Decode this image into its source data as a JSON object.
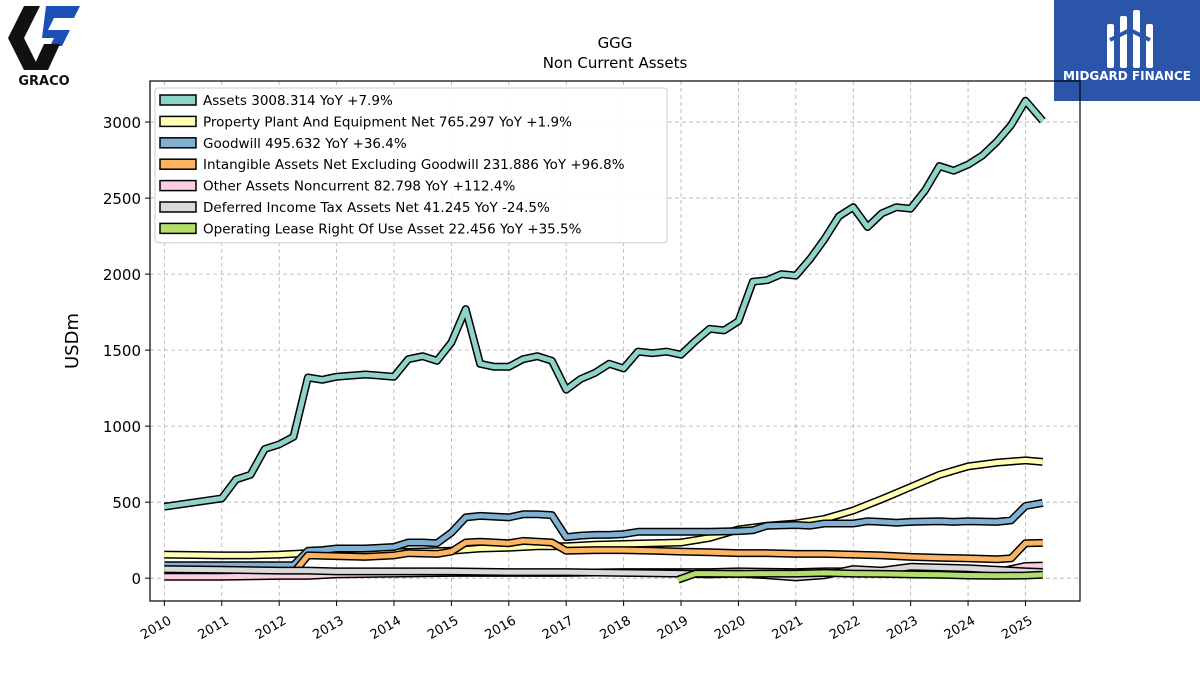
{
  "logos": {
    "left_text": "GRACO",
    "right_text": "MIDGARD FINANCE"
  },
  "chart_data": {
    "type": "line",
    "title": "GGG",
    "subtitle": "Non Current  Assets",
    "ylabel": "USDm",
    "xlabel": "",
    "xlim": [
      2009.75,
      2025.95
    ],
    "ylim": [
      -150,
      3270
    ],
    "yticks": [
      0,
      500,
      1000,
      1500,
      2000,
      2500,
      3000
    ],
    "xticks": [
      "2010",
      "2011",
      "2012",
      "2013",
      "2014",
      "2015",
      "2016",
      "2017",
      "2018",
      "2019",
      "2020",
      "2021",
      "2022",
      "2023",
      "2024",
      "2025"
    ],
    "grid": true,
    "legend_position": "top-left",
    "series": [
      {
        "name": "Assets",
        "legend": "Assets  3008.314 YoY +7.9%",
        "color": "#8dd3c7",
        "points": [
          [
            2010,
            470
          ],
          [
            2011,
            525
          ],
          [
            2011.25,
            650
          ],
          [
            2011.5,
            680
          ],
          [
            2011.75,
            850
          ],
          [
            2012,
            880
          ],
          [
            2012.25,
            930
          ],
          [
            2012.5,
            1320
          ],
          [
            2012.75,
            1305
          ],
          [
            2013,
            1325
          ],
          [
            2013.5,
            1340
          ],
          [
            2014,
            1325
          ],
          [
            2014.25,
            1440
          ],
          [
            2014.5,
            1460
          ],
          [
            2014.75,
            1430
          ],
          [
            2015,
            1550
          ],
          [
            2015.25,
            1770
          ],
          [
            2015.5,
            1410
          ],
          [
            2015.75,
            1390
          ],
          [
            2016,
            1390
          ],
          [
            2016.25,
            1440
          ],
          [
            2016.5,
            1460
          ],
          [
            2016.75,
            1430
          ],
          [
            2017,
            1240
          ],
          [
            2017.25,
            1310
          ],
          [
            2017.5,
            1350
          ],
          [
            2017.75,
            1410
          ],
          [
            2018,
            1380
          ],
          [
            2018.25,
            1490
          ],
          [
            2018.5,
            1480
          ],
          [
            2018.75,
            1490
          ],
          [
            2019,
            1470
          ],
          [
            2019.25,
            1560
          ],
          [
            2019.5,
            1640
          ],
          [
            2019.75,
            1630
          ],
          [
            2020,
            1690
          ],
          [
            2020.25,
            1950
          ],
          [
            2020.5,
            1960
          ],
          [
            2020.75,
            2000
          ],
          [
            2021,
            1990
          ],
          [
            2021.25,
            2100
          ],
          [
            2021.5,
            2230
          ],
          [
            2021.75,
            2380
          ],
          [
            2022,
            2440
          ],
          [
            2022.25,
            2310
          ],
          [
            2022.5,
            2400
          ],
          [
            2022.75,
            2440
          ],
          [
            2023,
            2430
          ],
          [
            2023.25,
            2550
          ],
          [
            2023.5,
            2710
          ],
          [
            2023.75,
            2680
          ],
          [
            2024,
            2720
          ],
          [
            2024.25,
            2780
          ],
          [
            2024.5,
            2870
          ],
          [
            2024.75,
            2980
          ],
          [
            2025,
            3140
          ],
          [
            2025.3,
            3008
          ]
        ]
      },
      {
        "name": "Property Plant And Equipment Net",
        "legend": "Property Plant And Equipment Net  765.297 YoY +1.9%",
        "color": "#ffffb3",
        "points": [
          [
            2010,
            155
          ],
          [
            2011,
            150
          ],
          [
            2011.5,
            150
          ],
          [
            2012,
            155
          ],
          [
            2012.5,
            165
          ],
          [
            2013,
            165
          ],
          [
            2014,
            170
          ],
          [
            2015,
            180
          ],
          [
            2015.5,
            195
          ],
          [
            2016,
            200
          ],
          [
            2016.5,
            210
          ],
          [
            2017,
            210
          ],
          [
            2017.5,
            220
          ],
          [
            2018,
            225
          ],
          [
            2018.5,
            230
          ],
          [
            2019,
            235
          ],
          [
            2019.5,
            265
          ],
          [
            2020,
            320
          ],
          [
            2020.5,
            345
          ],
          [
            2021,
            360
          ],
          [
            2021.5,
            390
          ],
          [
            2022,
            445
          ],
          [
            2022.5,
            520
          ],
          [
            2023,
            600
          ],
          [
            2023.5,
            680
          ],
          [
            2024,
            735
          ],
          [
            2024.5,
            760
          ],
          [
            2025,
            775
          ],
          [
            2025.3,
            765
          ]
        ]
      },
      {
        "name": "Goodwill",
        "legend": "Goodwill  495.632 YoY +36.4%",
        "color": "#80b1d3",
        "points": [
          [
            2010,
            85
          ],
          [
            2011,
            85
          ],
          [
            2012,
            85
          ],
          [
            2012.25,
            85
          ],
          [
            2012.5,
            180
          ],
          [
            2012.75,
            185
          ],
          [
            2013,
            195
          ],
          [
            2013.5,
            195
          ],
          [
            2014,
            205
          ],
          [
            2014.25,
            235
          ],
          [
            2014.5,
            235
          ],
          [
            2014.75,
            230
          ],
          [
            2015,
            300
          ],
          [
            2015.25,
            400
          ],
          [
            2015.5,
            410
          ],
          [
            2015.75,
            405
          ],
          [
            2016,
            400
          ],
          [
            2016.25,
            420
          ],
          [
            2016.5,
            420
          ],
          [
            2016.75,
            415
          ],
          [
            2017,
            270
          ],
          [
            2017.25,
            280
          ],
          [
            2017.5,
            285
          ],
          [
            2017.75,
            285
          ],
          [
            2018,
            290
          ],
          [
            2018.25,
            305
          ],
          [
            2018.5,
            305
          ],
          [
            2018.75,
            305
          ],
          [
            2019,
            305
          ],
          [
            2019.5,
            305
          ],
          [
            2020,
            310
          ],
          [
            2020.25,
            315
          ],
          [
            2020.5,
            345
          ],
          [
            2021,
            350
          ],
          [
            2021.25,
            345
          ],
          [
            2021.5,
            360
          ],
          [
            2022,
            360
          ],
          [
            2022.25,
            375
          ],
          [
            2022.5,
            370
          ],
          [
            2022.75,
            365
          ],
          [
            2023,
            370
          ],
          [
            2023.5,
            375
          ],
          [
            2023.75,
            370
          ],
          [
            2024,
            375
          ],
          [
            2024.5,
            370
          ],
          [
            2024.75,
            380
          ],
          [
            2025,
            475
          ],
          [
            2025.3,
            495
          ]
        ]
      },
      {
        "name": "Intangible Assets Net Excluding Goodwill",
        "legend": "Intangible Assets Net Excluding Goodwill  231.886 YoY +96.8%",
        "color": "#fdb462",
        "points": [
          [
            2010,
            35
          ],
          [
            2011,
            35
          ],
          [
            2012,
            35
          ],
          [
            2012.25,
            35
          ],
          [
            2012.5,
            150
          ],
          [
            2013,
            145
          ],
          [
            2013.5,
            140
          ],
          [
            2014,
            150
          ],
          [
            2014.25,
            165
          ],
          [
            2014.75,
            160
          ],
          [
            2015,
            175
          ],
          [
            2015.25,
            235
          ],
          [
            2015.5,
            240
          ],
          [
            2015.75,
            235
          ],
          [
            2016,
            230
          ],
          [
            2016.25,
            245
          ],
          [
            2016.75,
            235
          ],
          [
            2017,
            180
          ],
          [
            2017.5,
            185
          ],
          [
            2018,
            185
          ],
          [
            2018.5,
            180
          ],
          [
            2019,
            175
          ],
          [
            2019.5,
            170
          ],
          [
            2020,
            165
          ],
          [
            2020.5,
            165
          ],
          [
            2021,
            160
          ],
          [
            2021.5,
            160
          ],
          [
            2022,
            155
          ],
          [
            2022.5,
            150
          ],
          [
            2023,
            140
          ],
          [
            2023.5,
            135
          ],
          [
            2024,
            130
          ],
          [
            2024.5,
            125
          ],
          [
            2024.75,
            130
          ],
          [
            2025,
            230
          ],
          [
            2025.3,
            232
          ]
        ]
      },
      {
        "name": "Other Assets Noncurrent",
        "legend": "Other Assets Noncurrent  82.798 YoY +112.4%",
        "color": "#fccde5",
        "points": [
          [
            2010,
            10
          ],
          [
            2011,
            10
          ],
          [
            2012,
            15
          ],
          [
            2012.5,
            15
          ],
          [
            2013,
            25
          ],
          [
            2014,
            30
          ],
          [
            2015,
            35
          ],
          [
            2016,
            35
          ],
          [
            2017,
            35
          ],
          [
            2018,
            40
          ],
          [
            2019,
            40
          ],
          [
            2019.5,
            40
          ],
          [
            2020,
            45
          ],
          [
            2021,
            40
          ],
          [
            2021.5,
            45
          ],
          [
            2022,
            45
          ],
          [
            2022.5,
            45
          ],
          [
            2023,
            45
          ],
          [
            2024,
            40
          ],
          [
            2024.5,
            40
          ],
          [
            2025,
            80
          ],
          [
            2025.3,
            83
          ]
        ]
      },
      {
        "name": "Deferred Income Tax Assets Net",
        "legend": "Deferred Income Tax Assets Net  41.245 YoY -24.5%",
        "color": "#d9d9d9",
        "points": [
          [
            2010,
            60
          ],
          [
            2011,
            55
          ],
          [
            2012,
            50
          ],
          [
            2012.5,
            50
          ],
          [
            2013,
            45
          ],
          [
            2014,
            45
          ],
          [
            2015,
            45
          ],
          [
            2016,
            40
          ],
          [
            2017,
            40
          ],
          [
            2018,
            35
          ],
          [
            2019,
            30
          ],
          [
            2019.5,
            25
          ],
          [
            2020,
            30
          ],
          [
            2020.5,
            20
          ],
          [
            2021,
            5
          ],
          [
            2021.5,
            20
          ],
          [
            2022,
            60
          ],
          [
            2022.5,
            50
          ],
          [
            2023,
            75
          ],
          [
            2023.5,
            70
          ],
          [
            2024,
            65
          ],
          [
            2024.5,
            55
          ],
          [
            2025,
            45
          ],
          [
            2025.3,
            41
          ]
        ]
      },
      {
        "name": "Operating Lease Right Of Use Asset",
        "legend": "Operating Lease Right Of Use Asset  22.456 YoY +35.5%",
        "color": "#b3de69",
        "points": [
          [
            2018.95,
            -10
          ],
          [
            2019.25,
            30
          ],
          [
            2019.5,
            30
          ],
          [
            2020,
            28
          ],
          [
            2020.5,
            30
          ],
          [
            2021,
            30
          ],
          [
            2021.5,
            35
          ],
          [
            2022,
            30
          ],
          [
            2022.5,
            28
          ],
          [
            2023,
            25
          ],
          [
            2023.5,
            22
          ],
          [
            2024,
            18
          ],
          [
            2024.5,
            16
          ],
          [
            2025,
            18
          ],
          [
            2025.3,
            22
          ]
        ]
      }
    ]
  }
}
